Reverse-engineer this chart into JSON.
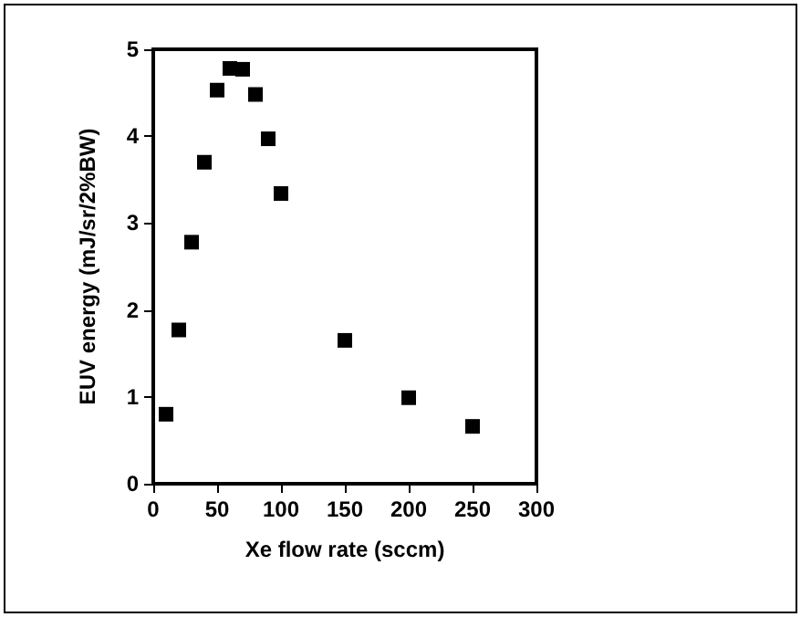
{
  "chart_data": {
    "type": "scatter",
    "xlabel": "Xe flow rate (sccm)",
    "ylabel": "EUV energy (mJ/sr/2%BW)",
    "x": [
      10,
      20,
      30,
      40,
      50,
      60,
      70,
      80,
      90,
      100,
      150,
      200,
      250
    ],
    "series": [
      {
        "color": "#000000",
        "values": [
          0.8,
          1.77,
          2.78,
          3.7,
          4.53,
          4.78,
          4.77,
          4.48,
          3.97,
          3.34,
          1.65,
          0.99,
          0.66
        ]
      }
    ],
    "xlim": [
      0,
      300
    ],
    "xticks": [
      0,
      50,
      100,
      150,
      200,
      250,
      300
    ],
    "ylim": [
      0,
      5
    ],
    "yticks": [
      0,
      1,
      2,
      3,
      4,
      5
    ],
    "grid": false,
    "marker": "square"
  }
}
